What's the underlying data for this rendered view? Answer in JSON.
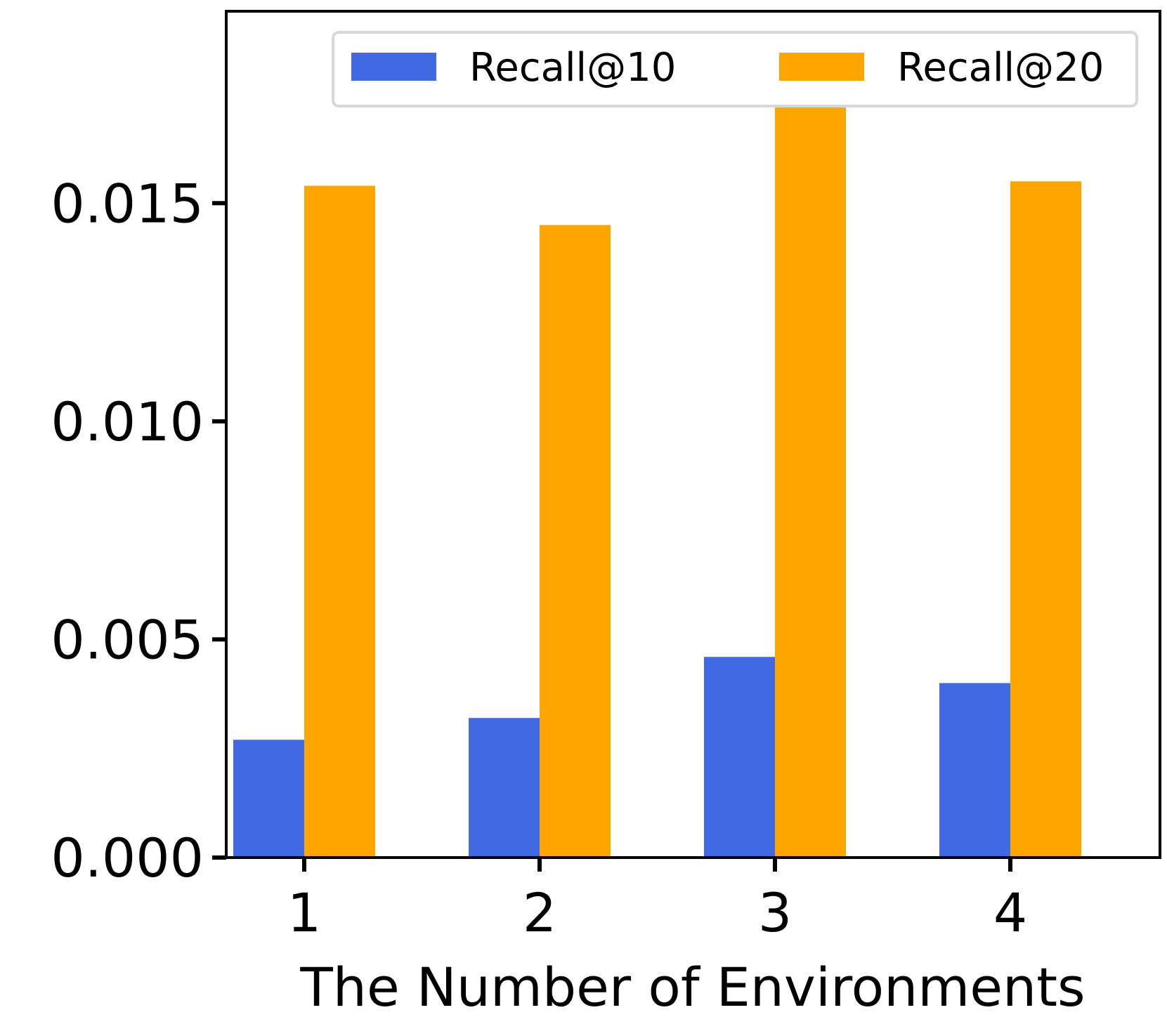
{
  "chart_data": {
    "type": "bar",
    "title": "",
    "xlabel": "The Number of Environments",
    "ylabel": "",
    "categories": [
      "1",
      "2",
      "3",
      "4"
    ],
    "series": [
      {
        "name": "Recall@10",
        "color": "#4169E1",
        "values": [
          0.0027,
          0.0032,
          0.0046,
          0.004
        ]
      },
      {
        "name": "Recall@20",
        "color": "#FFA500",
        "values": [
          0.0154,
          0.0145,
          0.0175,
          0.0155
        ]
      }
    ],
    "ylim": [
      0,
      0.0194
    ],
    "yticks": [
      "0.000",
      "0.005",
      "0.010",
      "0.015"
    ],
    "grid": false,
    "legend_position": "top-right"
  }
}
